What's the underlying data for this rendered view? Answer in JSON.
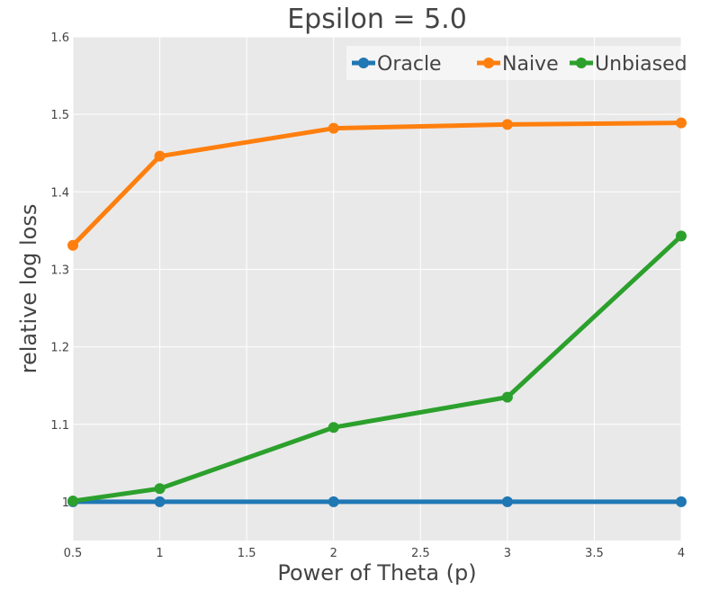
{
  "chart_data": {
    "type": "line",
    "title": "Epsilon = 5.0",
    "xlabel": "Power of Theta (p)",
    "ylabel": "relative log loss",
    "x": [
      0.5,
      1,
      2,
      3,
      4
    ],
    "xlim": [
      0.5,
      4
    ],
    "ylim": [
      0.95,
      1.6
    ],
    "xticks": [
      0.5,
      1,
      1.5,
      2,
      2.5,
      3,
      3.5,
      4
    ],
    "xtick_labels": [
      "0.5",
      "1",
      "1.5",
      "2",
      "2.5",
      "3",
      "3.5",
      "4"
    ],
    "yticks": [
      1,
      1.1,
      1.2,
      1.3,
      1.4,
      1.5,
      1.6
    ],
    "ytick_labels": [
      "1",
      "1.1",
      "1.2",
      "1.3",
      "1.4",
      "1.5",
      "1.6"
    ],
    "grid": true,
    "legend_position": "top-right",
    "plot_background": "#e9e9e9",
    "series": [
      {
        "name": "Oracle",
        "color": "#1f77b4",
        "values": [
          1.0,
          1.0,
          1.0,
          1.0,
          1.0
        ]
      },
      {
        "name": "Naive",
        "color": "#ff7f0e",
        "values": [
          1.331,
          1.446,
          1.482,
          1.487,
          1.489
        ]
      },
      {
        "name": "Unbiased",
        "color": "#2ca02c",
        "values": [
          1.001,
          1.017,
          1.096,
          1.135,
          1.343
        ]
      }
    ]
  }
}
